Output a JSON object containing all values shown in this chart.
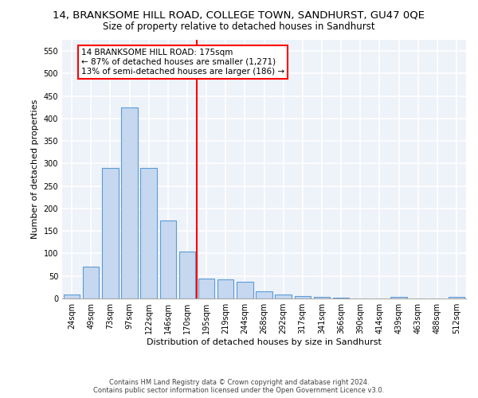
{
  "title": "14, BRANKSOME HILL ROAD, COLLEGE TOWN, SANDHURST, GU47 0QE",
  "subtitle": "Size of property relative to detached houses in Sandhurst",
  "xlabel": "Distribution of detached houses by size in Sandhurst",
  "ylabel": "Number of detached properties",
  "bar_color": "#c5d8f0",
  "bar_edge_color": "#5b9bd5",
  "categories": [
    "24sqm",
    "49sqm",
    "73sqm",
    "97sqm",
    "122sqm",
    "146sqm",
    "170sqm",
    "195sqm",
    "219sqm",
    "244sqm",
    "268sqm",
    "292sqm",
    "317sqm",
    "341sqm",
    "366sqm",
    "390sqm",
    "414sqm",
    "439sqm",
    "463sqm",
    "488sqm",
    "512sqm"
  ],
  "values": [
    8,
    70,
    291,
    425,
    291,
    174,
    105,
    44,
    42,
    37,
    16,
    8,
    5,
    3,
    1,
    0,
    0,
    4,
    0,
    0,
    4
  ],
  "ylim": [
    0,
    575
  ],
  "yticks": [
    0,
    50,
    100,
    150,
    200,
    250,
    300,
    350,
    400,
    450,
    500,
    550
  ],
  "property_label": "14 BRANKSOME HILL ROAD: 175sqm",
  "annotation_line1": "← 87% of detached houses are smaller (1,271)",
  "annotation_line2": "13% of semi-detached houses are larger (186) →",
  "vline_x_bin": 6,
  "footer1": "Contains HM Land Registry data © Crown copyright and database right 2024.",
  "footer2": "Contains public sector information licensed under the Open Government Licence v3.0.",
  "background_color": "#eef2f9",
  "grid_color": "#ffffff",
  "title_fontsize": 9.5,
  "subtitle_fontsize": 8.5,
  "axis_label_fontsize": 8,
  "tick_fontsize": 7
}
